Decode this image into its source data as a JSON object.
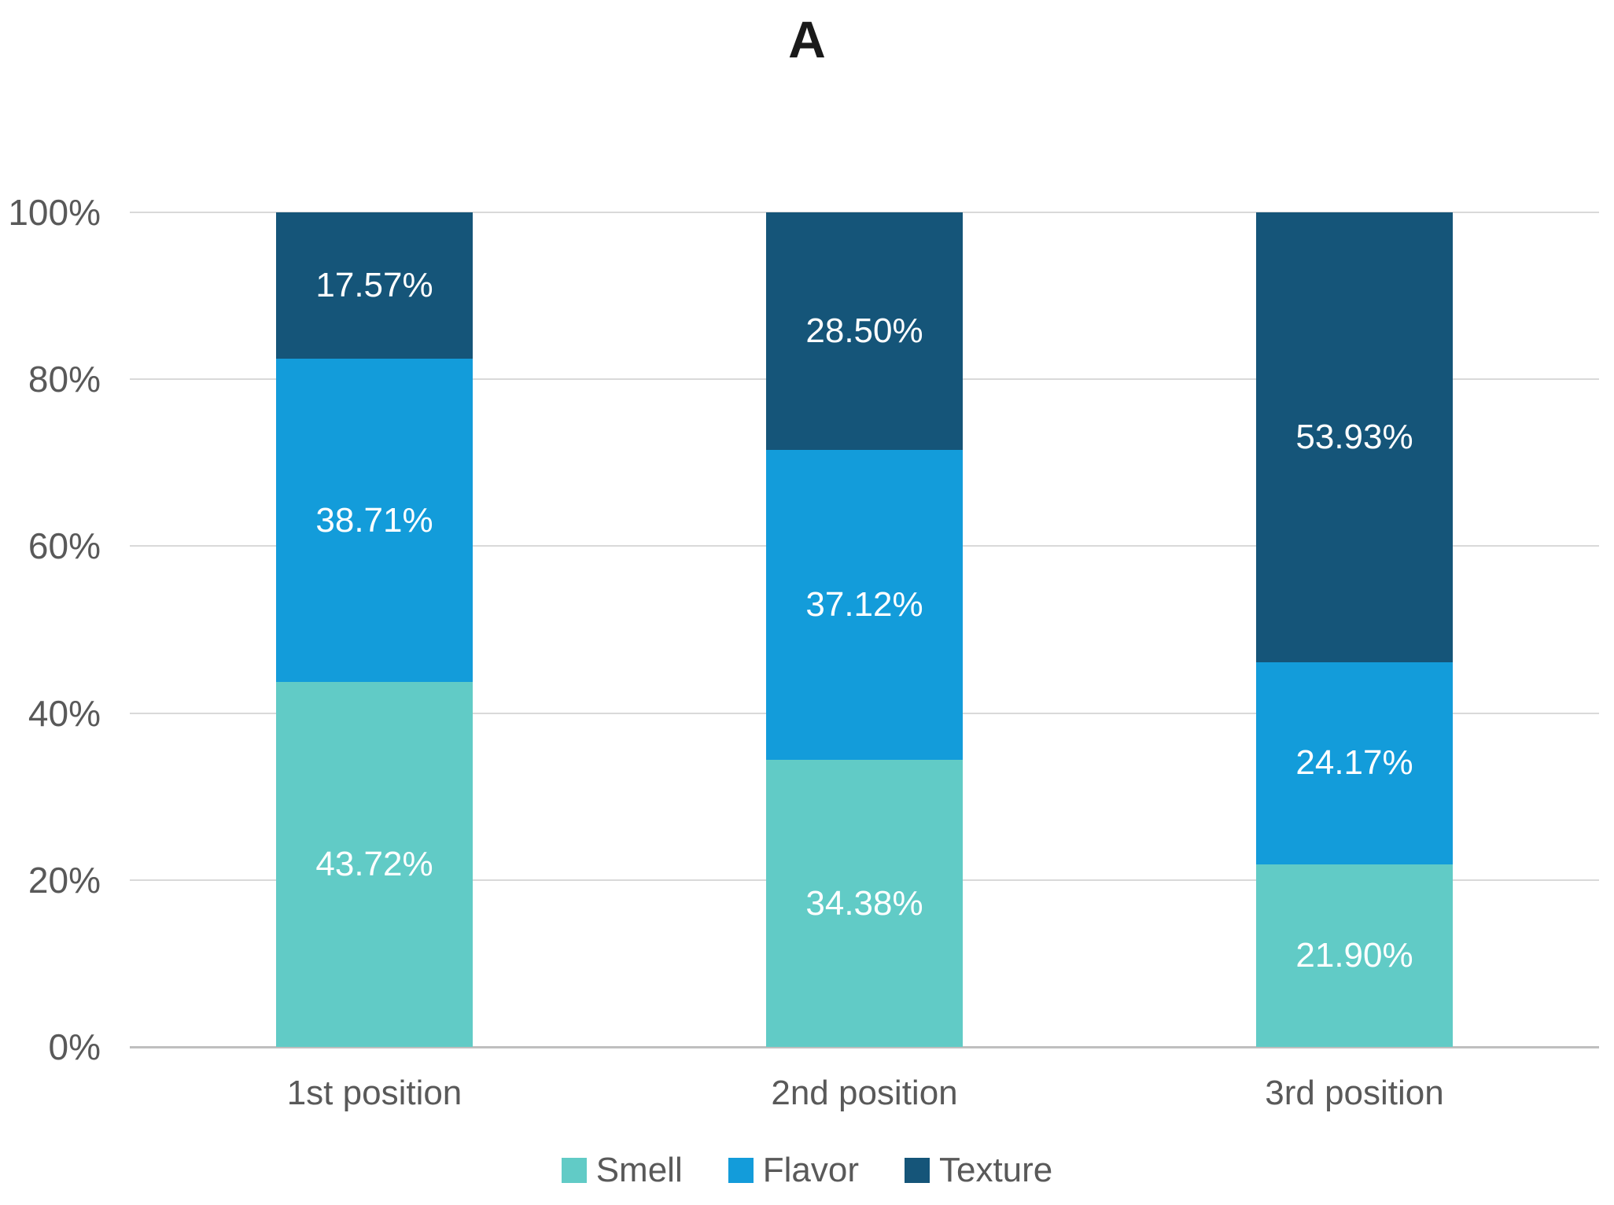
{
  "title": "A",
  "chart_data": {
    "type": "bar",
    "subtype": "100-percent-stacked-column",
    "title": "A",
    "categories": [
      "1st position",
      "2nd position",
      "3rd position"
    ],
    "series": [
      {
        "name": "Smell",
        "color": "#61CBC6",
        "values": [
          43.72,
          34.38,
          21.9
        ],
        "labels": [
          "43.72%",
          "34.38%",
          "21.90%"
        ]
      },
      {
        "name": "Flavor",
        "color": "#139CDA",
        "values": [
          38.71,
          37.12,
          24.17
        ],
        "labels": [
          "38.71%",
          "37.12%",
          "24.17%"
        ]
      },
      {
        "name": "Texture",
        "color": "#155579",
        "values": [
          17.57,
          28.5,
          53.93
        ],
        "labels": [
          "17.57%",
          "28.50%",
          "53.93%"
        ]
      }
    ],
    "y_axis": {
      "ticks": [
        "0%",
        "20%",
        "40%",
        "60%",
        "80%",
        "100%"
      ],
      "tick_values": [
        0,
        20,
        40,
        60,
        80,
        100
      ],
      "ylim": [
        0,
        100
      ],
      "grid": true
    },
    "legend": {
      "position": "bottom",
      "entries": [
        "Smell",
        "Flavor",
        "Texture"
      ]
    },
    "styles": {
      "data_label_color": "#FFFFFF",
      "axis_text_color": "#595959",
      "gridline_color": "#D9D9D9",
      "axis_line_color": "#BFBFBF",
      "title_color": "#1A1A1A",
      "background": "#FFFFFF"
    }
  }
}
